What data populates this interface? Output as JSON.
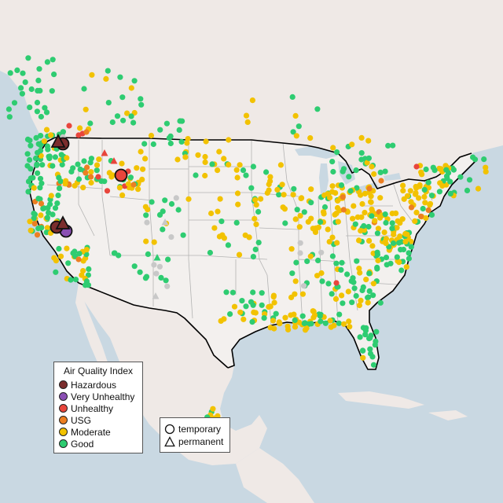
{
  "legend": {
    "title": "Air Quality Index",
    "categories": [
      {
        "label": "Hazardous",
        "color": "#7b2d2d"
      },
      {
        "label": "Very Unhealthy",
        "color": "#8a4fb3"
      },
      {
        "label": "Unhealthy",
        "color": "#e8453c"
      },
      {
        "label": "USG",
        "color": "#ec7f22"
      },
      {
        "label": "Moderate",
        "color": "#f2c200"
      },
      {
        "label": "Good",
        "color": "#2ecc71"
      }
    ],
    "no_data_color": "#c8c8c8"
  },
  "shape_legend": {
    "temporary_label": "temporary",
    "permanent_label": "permanent"
  },
  "colors": {
    "land": "#efe9e6",
    "water": "#c9d8e2",
    "usa_land": "#f3f0ee",
    "state_border": "#b3b3b3",
    "country_border": "#000000"
  }
}
